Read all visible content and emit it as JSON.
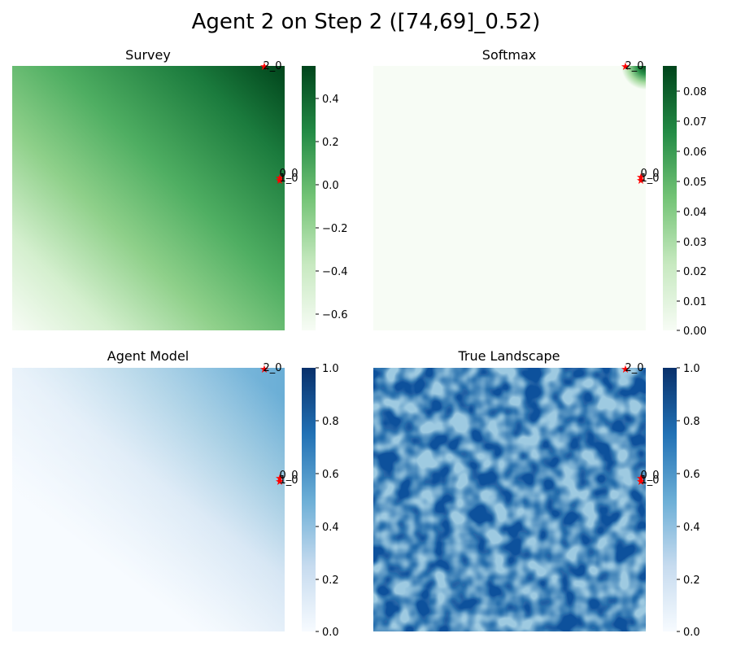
{
  "title": "Agent 2 on Step 2 ([74,69]_0.52)",
  "chart_data": [
    {
      "type": "heatmap",
      "title": "Survey",
      "colormap": "Greens",
      "colorbar_ticks": [
        "0.4",
        "0.2",
        "0.0",
        "−0.2",
        "−0.4",
        "−0.6"
      ],
      "colorbar_range": [
        -0.68,
        0.54
      ],
      "markers": [
        {
          "label": "2_0",
          "color": "#ff0000",
          "location": "top-right"
        },
        {
          "label": "0_0",
          "color": "#ff0000",
          "location": "right-middle"
        },
        {
          "label": "1_0",
          "color": "#ff0000",
          "location": "right-middle"
        }
      ]
    },
    {
      "type": "heatmap",
      "title": "Softmax",
      "colormap": "Greens",
      "colorbar_ticks": [
        "0.08",
        "0.07",
        "0.06",
        "0.05",
        "0.04",
        "0.03",
        "0.02",
        "0.01",
        "0.00"
      ],
      "colorbar_range": [
        0.0,
        0.088
      ],
      "markers": [
        {
          "label": "2_0",
          "color": "#ff0000",
          "location": "top-right"
        },
        {
          "label": "0_0",
          "color": "#ff0000",
          "location": "right-middle"
        },
        {
          "label": "1_0",
          "color": "#ff0000",
          "location": "right-middle"
        }
      ]
    },
    {
      "type": "heatmap",
      "title": "Agent Model",
      "colormap": "Blues",
      "colorbar_ticks": [
        "1.0",
        "0.8",
        "0.6",
        "0.4",
        "0.2",
        "0.0"
      ],
      "colorbar_range": [
        0.0,
        1.0
      ],
      "markers": [
        {
          "label": "2_0",
          "color": "#ff0000",
          "location": "top-right"
        },
        {
          "label": "0_0",
          "color": "#ff0000",
          "location": "right-middle"
        },
        {
          "label": "1_0",
          "color": "#ff0000",
          "location": "right-middle"
        }
      ]
    },
    {
      "type": "heatmap",
      "title": "True Landscape",
      "colormap": "Blues",
      "colorbar_ticks": [
        "1.0",
        "0.8",
        "0.6",
        "0.4",
        "0.2",
        "0.0"
      ],
      "colorbar_range": [
        0.0,
        1.0
      ],
      "markers": [
        {
          "label": "2_0",
          "color": "#ff0000",
          "location": "top-right"
        },
        {
          "label": "0_0",
          "color": "#ff0000",
          "location": "right-middle"
        },
        {
          "label": "1_0",
          "color": "#ff0000",
          "location": "right-middle"
        }
      ]
    }
  ]
}
